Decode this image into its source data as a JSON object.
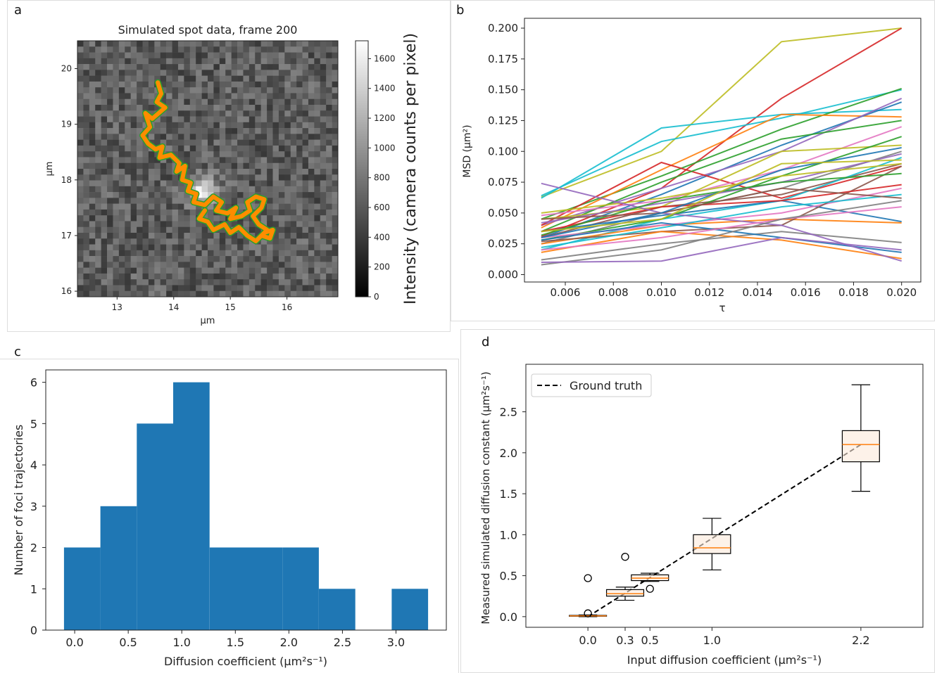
{
  "panels": {
    "a": "a",
    "b": "b",
    "c": "c",
    "d": "d"
  },
  "chart_data": [
    {
      "panel": "a",
      "type": "heatmap",
      "title": "Simulated spot data, frame 200",
      "xlabel": "µm",
      "ylabel": "µm",
      "xlim": [
        12.3,
        16.9
      ],
      "ylim": [
        15.9,
        20.5
      ],
      "x_ticks": [
        13,
        14,
        15,
        16
      ],
      "y_ticks": [
        16,
        17,
        18,
        19,
        20
      ],
      "colorbar": {
        "label": "Intensity (camera counts per pixel)",
        "ticks": [
          0,
          200,
          400,
          600,
          800,
          1000,
          1200,
          1400,
          1600
        ],
        "range": [
          0,
          1720
        ]
      },
      "spot": {
        "x": 14.5,
        "y": 17.8,
        "intensity": 1200
      },
      "track_colors": {
        "path": "#ff8c00",
        "outline": "#2ca02c"
      },
      "trajectory_x": [
        13.72,
        13.78,
        13.7,
        13.85,
        13.62,
        13.5,
        13.58,
        13.45,
        13.55,
        13.68,
        13.8,
        13.75,
        13.95,
        14.1,
        14.05,
        14.2,
        14.15,
        14.3,
        14.25,
        14.4,
        14.35,
        14.55,
        14.7,
        14.85,
        14.75,
        14.95,
        15.1,
        15.0,
        15.2,
        15.35,
        15.3,
        15.45,
        15.6,
        15.55,
        15.4,
        15.5,
        15.65,
        15.55,
        15.7,
        15.75,
        15.6,
        15.45,
        15.3,
        15.15,
        15.0,
        14.9,
        14.7,
        14.6,
        14.45,
        14.55
      ],
      "trajectory_y": [
        19.75,
        19.55,
        19.4,
        19.3,
        19.1,
        19.2,
        18.95,
        18.8,
        18.65,
        18.55,
        18.6,
        18.4,
        18.45,
        18.3,
        18.15,
        18.25,
        18.0,
        17.95,
        17.8,
        17.75,
        17.6,
        17.55,
        17.7,
        17.6,
        17.45,
        17.4,
        17.5,
        17.3,
        17.35,
        17.45,
        17.6,
        17.7,
        17.65,
        17.5,
        17.35,
        17.2,
        17.1,
        17.0,
        16.95,
        17.1,
        17.05,
        16.9,
        17.0,
        17.15,
        17.05,
        17.2,
        17.1,
        17.25,
        17.3,
        17.45
      ]
    },
    {
      "panel": "b",
      "type": "line",
      "xlabel": "τ",
      "ylabel": "MSD (µm²)",
      "xlim": [
        0.0043,
        0.0208
      ],
      "ylim": [
        -0.006,
        0.208
      ],
      "x_ticks": [
        0.006,
        0.008,
        0.01,
        0.012,
        0.014,
        0.016,
        0.018,
        0.02
      ],
      "y_ticks": [
        0.0,
        0.025,
        0.05,
        0.075,
        0.1,
        0.125,
        0.15,
        0.175,
        0.2
      ],
      "x": [
        0.005,
        0.01,
        0.015,
        0.02
      ],
      "series": [
        {
          "color": "#bcbd22",
          "values": [
            0.063,
            0.1,
            0.189,
            0.2
          ]
        },
        {
          "color": "#d62728",
          "values": [
            0.031,
            0.07,
            0.143,
            0.2
          ]
        },
        {
          "color": "#17becf",
          "values": [
            0.062,
            0.119,
            0.13,
            0.134
          ]
        },
        {
          "color": "#17becf",
          "values": [
            0.064,
            0.108,
            0.127,
            0.15
          ]
        },
        {
          "color": "#2ca02c",
          "values": [
            0.045,
            0.08,
            0.118,
            0.151
          ]
        },
        {
          "color": "#ff7f0e",
          "values": [
            0.038,
            0.085,
            0.13,
            0.128
          ]
        },
        {
          "color": "#1f77b4",
          "values": [
            0.03,
            0.065,
            0.105,
            0.14
          ]
        },
        {
          "color": "#9467bd",
          "values": [
            0.04,
            0.07,
            0.1,
            0.143
          ]
        },
        {
          "color": "#d62728",
          "values": [
            0.04,
            0.091,
            0.062,
            0.088
          ]
        },
        {
          "color": "#2ca02c",
          "values": [
            0.035,
            0.075,
            0.11,
            0.125
          ]
        },
        {
          "color": "#e377c2",
          "values": [
            0.048,
            0.06,
            0.085,
            0.12
          ]
        },
        {
          "color": "#8c564b",
          "values": [
            0.03,
            0.055,
            0.065,
            0.09
          ]
        },
        {
          "color": "#7f7f7f",
          "values": [
            0.025,
            0.05,
            0.07,
            0.1
          ]
        },
        {
          "color": "#bcbd22",
          "values": [
            0.045,
            0.055,
            0.1,
            0.105
          ]
        },
        {
          "color": "#17becf",
          "values": [
            0.02,
            0.045,
            0.06,
            0.095
          ]
        },
        {
          "color": "#1f77b4",
          "values": [
            0.035,
            0.048,
            0.06,
            0.043
          ]
        },
        {
          "color": "#ff7f0e",
          "values": [
            0.025,
            0.04,
            0.045,
            0.042
          ]
        },
        {
          "color": "#2ca02c",
          "values": [
            0.028,
            0.045,
            0.08,
            0.112
          ]
        },
        {
          "color": "#9467bd",
          "values": [
            0.042,
            0.058,
            0.075,
            0.098
          ]
        },
        {
          "color": "#e377c2",
          "values": [
            0.03,
            0.04,
            0.05,
            0.07
          ]
        },
        {
          "color": "#8c564b",
          "values": [
            0.027,
            0.035,
            0.04,
            0.088
          ]
        },
        {
          "color": "#7f7f7f",
          "values": [
            0.012,
            0.025,
            0.035,
            0.026
          ]
        },
        {
          "color": "#bcbd22",
          "values": [
            0.05,
            0.062,
            0.08,
            0.09
          ]
        },
        {
          "color": "#17becf",
          "values": [
            0.022,
            0.038,
            0.055,
            0.065
          ]
        },
        {
          "color": "#1f77b4",
          "values": [
            0.028,
            0.042,
            0.03,
            0.018
          ]
        },
        {
          "color": "#ff7f0e",
          "values": [
            0.018,
            0.035,
            0.028,
            0.013
          ]
        },
        {
          "color": "#d62728",
          "values": [
            0.035,
            0.055,
            0.06,
            0.073
          ]
        },
        {
          "color": "#9467bd",
          "values": [
            0.074,
            0.05,
            0.04,
            0.011
          ]
        },
        {
          "color": "#e377c2",
          "values": [
            0.02,
            0.03,
            0.045,
            0.055
          ]
        },
        {
          "color": "#7f7f7f",
          "values": [
            0.008,
            0.02,
            0.045,
            0.06
          ]
        },
        {
          "color": "#2ca02c",
          "values": [
            0.032,
            0.06,
            0.075,
            0.082
          ]
        },
        {
          "color": "#8c564b",
          "values": [
            0.045,
            0.05,
            0.07,
            0.062
          ]
        },
        {
          "color": "#9467bd",
          "values": [
            0.01,
            0.011,
            0.03,
            0.02
          ]
        },
        {
          "color": "#1f77b4",
          "values": [
            0.03,
            0.05,
            0.085,
            0.103
          ]
        },
        {
          "color": "#bcbd22",
          "values": [
            0.035,
            0.045,
            0.09,
            0.093
          ]
        }
      ]
    },
    {
      "panel": "c",
      "type": "bar",
      "xlabel": "Diffusion coefficient (µm²s⁻¹)",
      "ylabel": "Number of foci trajectories",
      "xlim": [
        -0.27,
        3.47
      ],
      "ylim": [
        0,
        6.3
      ],
      "x_ticks": [
        0.0,
        0.5,
        1.0,
        1.5,
        2.0,
        2.5,
        3.0
      ],
      "y_ticks": [
        0,
        1,
        2,
        3,
        4,
        5,
        6
      ],
      "bin_edges": [
        -0.1,
        0.24,
        0.58,
        0.92,
        1.26,
        1.6,
        1.94,
        2.28,
        2.62,
        2.96,
        3.3
      ],
      "values": [
        2,
        3,
        5,
        6,
        2,
        2,
        2,
        1,
        0,
        1
      ],
      "color": "#1f77b4"
    },
    {
      "panel": "d",
      "type": "box",
      "xlabel": "Input diffusion coefficient (µm²s⁻¹)",
      "ylabel": "Measured simulated diffusion constant (µm²s⁻¹)",
      "xlim": [
        -0.5,
        2.7
      ],
      "ylim": [
        -0.13,
        3.08
      ],
      "x_ticks": [
        0.0,
        0.3,
        0.5,
        1.0,
        2.2
      ],
      "x_tick_labels": [
        "0.0",
        "0.3",
        "0.5",
        "1.0",
        "2.2"
      ],
      "y_ticks": [
        0.0,
        0.5,
        1.0,
        1.5,
        2.0,
        2.5
      ],
      "legend": {
        "label": "Ground truth",
        "position": "upper-left"
      },
      "ground_truth": {
        "x": [
          0.0,
          2.2
        ],
        "y": [
          0.0,
          2.1
        ]
      },
      "boxes": [
        {
          "x": 0.0,
          "q1": 0.005,
          "median": 0.01,
          "q3": 0.015,
          "whislo": 0.0,
          "whishi": 0.02,
          "fliers": [
            0.47,
            0.04
          ]
        },
        {
          "x": 0.3,
          "q1": 0.25,
          "median": 0.28,
          "q3": 0.33,
          "whislo": 0.2,
          "whishi": 0.36,
          "fliers": [
            0.73
          ]
        },
        {
          "x": 0.5,
          "q1": 0.44,
          "median": 0.47,
          "q3": 0.51,
          "whislo": 0.43,
          "whishi": 0.53,
          "fliers": [
            0.34
          ]
        },
        {
          "x": 1.0,
          "q1": 0.77,
          "median": 0.84,
          "q3": 1.0,
          "whislo": 0.57,
          "whishi": 1.2,
          "fliers": []
        },
        {
          "x": 2.2,
          "q1": 1.89,
          "median": 2.1,
          "q3": 2.27,
          "whislo": 1.53,
          "whishi": 2.83,
          "fliers": []
        }
      ],
      "box_width": 0.3,
      "colors": {
        "median": "#ff7f0e",
        "box_fill": "#fbe9da",
        "gt": "#000000"
      }
    }
  ]
}
